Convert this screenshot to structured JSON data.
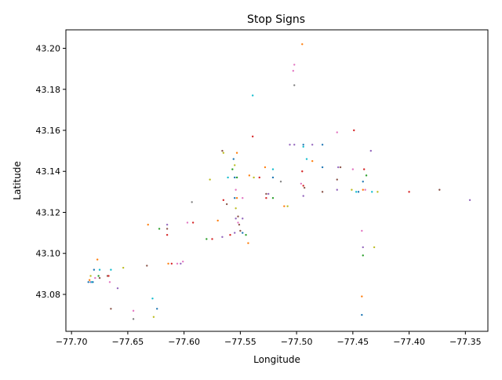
{
  "chart_data": {
    "type": "scatter",
    "title": "Stop Signs",
    "xlabel": "Longitude",
    "ylabel": "Latitude",
    "xlim": [
      -77.705,
      -77.33
    ],
    "ylim": [
      43.062,
      43.209
    ],
    "xticks": [
      -77.7,
      -77.65,
      -77.6,
      -77.55,
      -77.5,
      -77.45,
      -77.4,
      -77.35
    ],
    "yticks": [
      43.08,
      43.1,
      43.12,
      43.14,
      43.16,
      43.18,
      43.2
    ],
    "xtick_labels": [
      "−77.70",
      "−77.65",
      "−77.60",
      "−77.55",
      "−77.50",
      "−77.45",
      "−77.40",
      "−77.35"
    ],
    "ytick_labels": [
      "43.08",
      "43.10",
      "43.12",
      "43.14",
      "43.16",
      "43.18",
      "43.20"
    ],
    "grid": false,
    "palette": [
      "#1f77b4",
      "#ff7f0e",
      "#2ca02c",
      "#d62728",
      "#9467bd",
      "#8c564b",
      "#e377c2",
      "#7f7f7f",
      "#bcbd22",
      "#17becf"
    ],
    "points": [
      [
        -77.495,
        43.202,
        1
      ],
      [
        -77.502,
        43.192,
        6
      ],
      [
        -77.503,
        43.189,
        6
      ],
      [
        -77.502,
        43.182,
        7
      ],
      [
        -77.539,
        43.177,
        9
      ],
      [
        -77.449,
        43.16,
        3
      ],
      [
        -77.464,
        43.159,
        6
      ],
      [
        -77.539,
        43.157,
        3
      ],
      [
        -77.506,
        43.153,
        4
      ],
      [
        -77.502,
        43.153,
        4
      ],
      [
        -77.494,
        43.153,
        0
      ],
      [
        -77.494,
        43.152,
        9
      ],
      [
        -77.486,
        43.153,
        4
      ],
      [
        -77.477,
        43.153,
        0
      ],
      [
        -77.434,
        43.15,
        4
      ],
      [
        -77.566,
        43.15,
        5
      ],
      [
        -77.565,
        43.149,
        8
      ],
      [
        -77.553,
        43.149,
        1
      ],
      [
        -77.556,
        43.146,
        0
      ],
      [
        -77.491,
        43.146,
        9
      ],
      [
        -77.486,
        43.145,
        1
      ],
      [
        -77.555,
        43.143,
        8
      ],
      [
        -77.557,
        43.141,
        2
      ],
      [
        -77.528,
        43.142,
        1
      ],
      [
        -77.521,
        43.141,
        9
      ],
      [
        -77.477,
        43.142,
        0
      ],
      [
        -77.463,
        43.142,
        4
      ],
      [
        -77.461,
        43.142,
        5
      ],
      [
        -77.45,
        43.141,
        6
      ],
      [
        -77.44,
        43.141,
        3
      ],
      [
        -77.495,
        43.14,
        3
      ],
      [
        -77.438,
        43.138,
        2
      ],
      [
        -77.542,
        43.138,
        1
      ],
      [
        -77.538,
        43.137,
        8
      ],
      [
        -77.533,
        43.137,
        3
      ],
      [
        -77.521,
        43.137,
        0
      ],
      [
        -77.555,
        43.137,
        0
      ],
      [
        -77.553,
        43.137,
        2
      ],
      [
        -77.561,
        43.137,
        9
      ],
      [
        -77.577,
        43.136,
        8
      ],
      [
        -77.464,
        43.136,
        5
      ],
      [
        -77.441,
        43.135,
        0
      ],
      [
        -77.514,
        43.135,
        7
      ],
      [
        -77.496,
        43.134,
        6
      ],
      [
        -77.494,
        43.133,
        3
      ],
      [
        -77.493,
        43.132,
        5
      ],
      [
        -77.477,
        43.13,
        5
      ],
      [
        -77.464,
        43.131,
        4
      ],
      [
        -77.451,
        43.131,
        8
      ],
      [
        -77.447,
        43.13,
        9
      ],
      [
        -77.445,
        43.13,
        0
      ],
      [
        -77.441,
        43.131,
        1
      ],
      [
        -77.439,
        43.131,
        6
      ],
      [
        -77.433,
        43.13,
        9
      ],
      [
        -77.428,
        43.13,
        8
      ],
      [
        -77.4,
        43.13,
        3
      ],
      [
        -77.373,
        43.131,
        5
      ],
      [
        -77.346,
        43.126,
        4
      ],
      [
        -77.554,
        43.131,
        6
      ],
      [
        -77.555,
        43.127,
        0
      ],
      [
        -77.553,
        43.127,
        1
      ],
      [
        -77.548,
        43.127,
        6
      ],
      [
        -77.527,
        43.129,
        5
      ],
      [
        -77.525,
        43.129,
        4
      ],
      [
        -77.521,
        43.127,
        2
      ],
      [
        -77.527,
        43.127,
        3
      ],
      [
        -77.565,
        43.126,
        3
      ],
      [
        -77.562,
        43.124,
        5
      ],
      [
        -77.593,
        43.125,
        7
      ],
      [
        -77.554,
        43.122,
        8
      ],
      [
        -77.511,
        43.123,
        1
      ],
      [
        -77.508,
        43.123,
        8
      ],
      [
        -77.494,
        43.128,
        4
      ],
      [
        -77.552,
        43.118,
        5
      ],
      [
        -77.554,
        43.117,
        4
      ],
      [
        -77.548,
        43.117,
        4
      ],
      [
        -77.552,
        43.115,
        6
      ],
      [
        -77.551,
        43.114,
        5
      ],
      [
        -77.57,
        43.116,
        1
      ],
      [
        -77.592,
        43.115,
        3
      ],
      [
        -77.597,
        43.115,
        6
      ],
      [
        -77.632,
        43.114,
        1
      ],
      [
        -77.615,
        43.114,
        4
      ],
      [
        -77.615,
        43.112,
        5
      ],
      [
        -77.622,
        43.112,
        2
      ],
      [
        -77.615,
        43.109,
        3
      ],
      [
        -77.555,
        43.11,
        4
      ],
      [
        -77.55,
        43.111,
        5
      ],
      [
        -77.548,
        43.11,
        0
      ],
      [
        -77.545,
        43.109,
        2
      ],
      [
        -77.559,
        43.109,
        3
      ],
      [
        -77.566,
        43.108,
        4
      ],
      [
        -77.575,
        43.107,
        3
      ],
      [
        -77.58,
        43.107,
        2
      ],
      [
        -77.543,
        43.105,
        1
      ],
      [
        -77.442,
        43.111,
        6
      ],
      [
        -77.441,
        43.103,
        4
      ],
      [
        -77.431,
        43.103,
        8
      ],
      [
        -77.441,
        43.099,
        2
      ],
      [
        -77.601,
        43.096,
        6
      ],
      [
        -77.603,
        43.095,
        4
      ],
      [
        -77.606,
        43.095,
        6
      ],
      [
        -77.611,
        43.095,
        3
      ],
      [
        -77.614,
        43.095,
        1
      ],
      [
        -77.633,
        43.094,
        5
      ],
      [
        -77.677,
        43.097,
        1
      ],
      [
        -77.68,
        43.092,
        0
      ],
      [
        -77.675,
        43.092,
        9
      ],
      [
        -77.665,
        43.092,
        9
      ],
      [
        -77.654,
        43.093,
        8
      ],
      [
        -77.683,
        43.089,
        8
      ],
      [
        -77.679,
        43.088,
        6
      ],
      [
        -77.676,
        43.089,
        2
      ],
      [
        -77.675,
        43.088,
        5
      ],
      [
        -77.668,
        43.089,
        5
      ],
      [
        -77.667,
        43.089,
        3
      ],
      [
        -77.684,
        43.087,
        1
      ],
      [
        -77.685,
        43.086,
        0
      ],
      [
        -77.683,
        43.086,
        4
      ],
      [
        -77.682,
        43.086,
        9
      ],
      [
        -77.681,
        43.086,
        0
      ],
      [
        -77.666,
        43.086,
        6
      ],
      [
        -77.659,
        43.083,
        4
      ],
      [
        -77.628,
        43.078,
        9
      ],
      [
        -77.442,
        43.079,
        1
      ],
      [
        -77.665,
        43.073,
        5
      ],
      [
        -77.645,
        43.072,
        6
      ],
      [
        -77.624,
        43.073,
        0
      ],
      [
        -77.627,
        43.069,
        8
      ],
      [
        -77.645,
        43.068,
        7
      ],
      [
        -77.442,
        43.07,
        0
      ]
    ]
  }
}
